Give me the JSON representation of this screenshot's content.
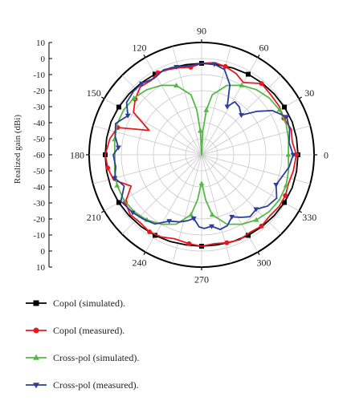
{
  "chart_data": {
    "type": "polar-line",
    "ylabel": "Realized gain (dBi)",
    "r_range": [
      -60,
      10
    ],
    "r_ticks_top": [
      "10",
      "0",
      "-10",
      "-20",
      "-30",
      "-40",
      "-50",
      "-60"
    ],
    "r_ticks_bottom": [
      "-50",
      "-40",
      "-30",
      "-20",
      "-10",
      "0",
      "10"
    ],
    "angle_ticks": [
      {
        "deg": 0,
        "label": "0"
      },
      {
        "deg": 30,
        "label": "30"
      },
      {
        "deg": 60,
        "label": "60"
      },
      {
        "deg": 90,
        "label": "90"
      },
      {
        "deg": 120,
        "label": "120"
      },
      {
        "deg": 150,
        "label": "150"
      },
      {
        "deg": 180,
        "label": "180"
      },
      {
        "deg": 210,
        "label": "210"
      },
      {
        "deg": 240,
        "label": "240"
      },
      {
        "deg": 270,
        "label": "270"
      },
      {
        "deg": 300,
        "label": "300"
      },
      {
        "deg": 330,
        "label": "330"
      }
    ],
    "grid": true,
    "legend_position": "bottom",
    "series": [
      {
        "name": "Copol (simulated).",
        "color": "#000000",
        "marker": "square",
        "points": [
          [
            0,
            0
          ],
          [
            10,
            0
          ],
          [
            20,
            0
          ],
          [
            30,
            -0.5
          ],
          [
            40,
            -1
          ],
          [
            50,
            -1.5
          ],
          [
            60,
            -2
          ],
          [
            70,
            -2.5
          ],
          [
            80,
            -3
          ],
          [
            90,
            -3
          ],
          [
            100,
            -3
          ],
          [
            110,
            -2.5
          ],
          [
            120,
            -2
          ],
          [
            130,
            -1.5
          ],
          [
            140,
            -1
          ],
          [
            150,
            -0.5
          ],
          [
            160,
            0
          ],
          [
            170,
            0
          ],
          [
            180,
            0
          ],
          [
            190,
            0
          ],
          [
            200,
            0
          ],
          [
            210,
            -0.5
          ],
          [
            220,
            -1
          ],
          [
            230,
            -1.5
          ],
          [
            240,
            -2
          ],
          [
            250,
            -2.5
          ],
          [
            260,
            -3
          ],
          [
            270,
            -3
          ],
          [
            280,
            -3
          ],
          [
            290,
            -2.5
          ],
          [
            300,
            -2
          ],
          [
            310,
            -1.5
          ],
          [
            320,
            -1
          ],
          [
            330,
            -0.5
          ],
          [
            340,
            0
          ],
          [
            350,
            0
          ]
        ]
      },
      {
        "name": "Copol (measured).",
        "color": "#e8191e",
        "marker": "circle",
        "points": [
          [
            0,
            -1
          ],
          [
            8,
            -3
          ],
          [
            16,
            -2
          ],
          [
            24,
            -4
          ],
          [
            32,
            -3
          ],
          [
            40,
            -3
          ],
          [
            50,
            -2
          ],
          [
            60,
            -8
          ],
          [
            67,
            -5
          ],
          [
            75,
            -3
          ],
          [
            82,
            -2
          ],
          [
            90,
            -3
          ],
          [
            97,
            -5
          ],
          [
            104,
            -4
          ],
          [
            111,
            -3
          ],
          [
            118,
            -2
          ],
          [
            124,
            -4
          ],
          [
            132,
            -3
          ],
          [
            140,
            -6
          ],
          [
            148,
            -10
          ],
          [
            155,
            -24
          ],
          [
            162,
            -5
          ],
          [
            170,
            -2
          ],
          [
            180,
            0
          ],
          [
            188,
            -1
          ],
          [
            196,
            -3
          ],
          [
            204,
            -12
          ],
          [
            212,
            -4
          ],
          [
            220,
            -2
          ],
          [
            228,
            -3
          ],
          [
            236,
            -2
          ],
          [
            244,
            -3
          ],
          [
            252,
            -5
          ],
          [
            262,
            -4
          ],
          [
            270,
            -3
          ],
          [
            278,
            -4
          ],
          [
            286,
            -3
          ],
          [
            294,
            -2
          ],
          [
            302,
            -3
          ],
          [
            310,
            -2
          ],
          [
            318,
            -3
          ],
          [
            326,
            -2
          ],
          [
            334,
            -2
          ],
          [
            342,
            -3
          ],
          [
            350,
            -2
          ]
        ]
      },
      {
        "name": "Cross-pol (simulated).",
        "color": "#56b847",
        "marker": "triangle-up",
        "points": [
          [
            0,
            -6
          ],
          [
            10,
            -5
          ],
          [
            20,
            -4
          ],
          [
            30,
            -4
          ],
          [
            40,
            -5
          ],
          [
            50,
            -7
          ],
          [
            60,
            -10
          ],
          [
            70,
            -14
          ],
          [
            80,
            -22
          ],
          [
            84,
            -32
          ],
          [
            87,
            -45
          ],
          [
            90,
            -60
          ],
          [
            93,
            -45
          ],
          [
            96,
            -32
          ],
          [
            100,
            -22
          ],
          [
            110,
            -14
          ],
          [
            120,
            -10
          ],
          [
            130,
            -7
          ],
          [
            140,
            -5
          ],
          [
            150,
            -4
          ],
          [
            160,
            -4
          ],
          [
            170,
            -5
          ],
          [
            180,
            -6
          ],
          [
            190,
            -5
          ],
          [
            200,
            -4
          ],
          [
            210,
            -4
          ],
          [
            220,
            -5
          ],
          [
            230,
            -7
          ],
          [
            240,
            -10
          ],
          [
            250,
            -14
          ],
          [
            260,
            -22
          ],
          [
            265,
            -32
          ],
          [
            268,
            -40
          ],
          [
            270,
            -42
          ],
          [
            272,
            -40
          ],
          [
            275,
            -32
          ],
          [
            280,
            -22
          ],
          [
            290,
            -14
          ],
          [
            300,
            -10
          ],
          [
            310,
            -7
          ],
          [
            320,
            -5
          ],
          [
            330,
            -4
          ],
          [
            340,
            -4
          ],
          [
            350,
            -5
          ]
        ]
      },
      {
        "name": "Cross-pol (measured).",
        "color": "#2c3e9a",
        "marker": "triangle-down",
        "points": [
          [
            0,
            -3
          ],
          [
            8,
            -5
          ],
          [
            16,
            -3
          ],
          [
            24,
            -2
          ],
          [
            32,
            -8
          ],
          [
            38,
            -16
          ],
          [
            45,
            -25
          ],
          [
            52,
            -22
          ],
          [
            58,
            -21
          ],
          [
            62,
            -26
          ],
          [
            68,
            -13
          ],
          [
            75,
            -5
          ],
          [
            82,
            -3
          ],
          [
            90,
            -3
          ],
          [
            98,
            -4
          ],
          [
            106,
            -3
          ],
          [
            114,
            -2
          ],
          [
            122,
            -4
          ],
          [
            130,
            -2
          ],
          [
            137,
            -2
          ],
          [
            145,
            -3
          ],
          [
            152,
            -8
          ],
          [
            160,
            -3
          ],
          [
            168,
            -5
          ],
          [
            175,
            -8
          ],
          [
            180,
            -5
          ],
          [
            188,
            -6
          ],
          [
            195,
            -4
          ],
          [
            202,
            -8
          ],
          [
            210,
            -2
          ],
          [
            220,
            -4
          ],
          [
            228,
            -6
          ],
          [
            236,
            -8
          ],
          [
            244,
            -14
          ],
          [
            252,
            -16
          ],
          [
            258,
            -18
          ],
          [
            263,
            -20
          ],
          [
            268,
            -15
          ],
          [
            272,
            -14
          ],
          [
            278,
            -15
          ],
          [
            284,
            -12
          ],
          [
            290,
            -13
          ],
          [
            296,
            -17
          ],
          [
            302,
            -14
          ],
          [
            308,
            -11
          ],
          [
            315,
            -12
          ],
          [
            322,
            -8
          ],
          [
            330,
            -6
          ],
          [
            338,
            -10
          ],
          [
            345,
            -8
          ],
          [
            352,
            -5
          ]
        ]
      }
    ]
  }
}
